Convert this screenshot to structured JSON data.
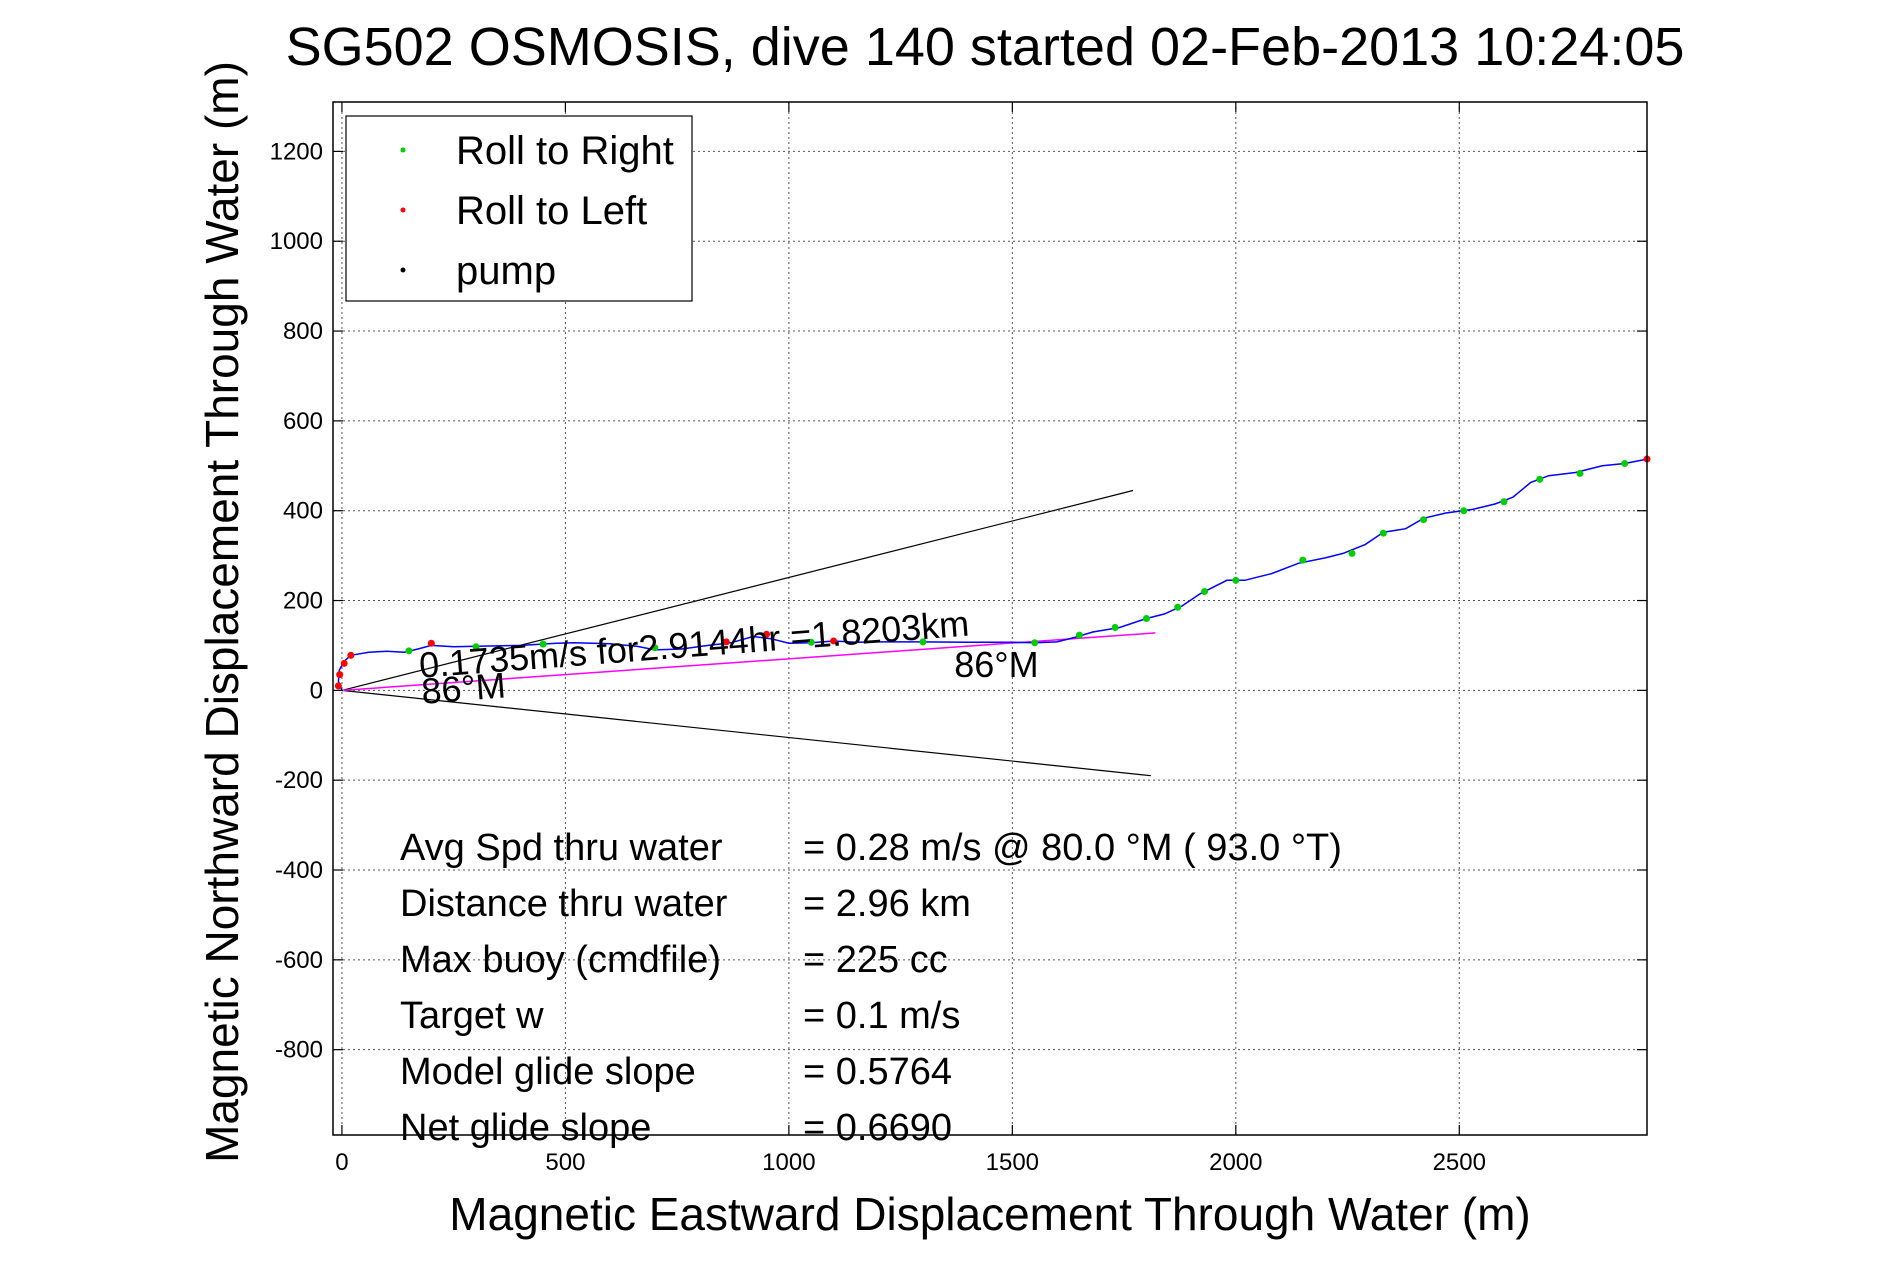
{
  "chart_data": {
    "type": "scatter",
    "title": "SG502 OSMOSIS, dive 140 started 02-Feb-2013 10:24:05",
    "xlabel": "Magnetic Eastward Displacement Through Water (m)",
    "ylabel": "Magnetic Northward Displacement Through Water (m)",
    "xlim": [
      -20,
      2920
    ],
    "ylim": [
      -990,
      1310
    ],
    "xticks": [
      0,
      500,
      1000,
      1500,
      2000,
      2500
    ],
    "yticks": [
      -800,
      -600,
      -400,
      -200,
      0,
      200,
      400,
      600,
      800,
      1000,
      1200
    ],
    "grid": true,
    "legend_position": "top-left",
    "legend": [
      {
        "label": "Roll to Right",
        "color": "#00cc00"
      },
      {
        "label": "Roll to Left",
        "color": "#ff0000"
      },
      {
        "label": "pump",
        "color": "#000000"
      }
    ],
    "track": {
      "name": "path",
      "color": "#0000ff",
      "points": [
        [
          0,
          0
        ],
        [
          -8,
          20
        ],
        [
          -6,
          45
        ],
        [
          5,
          65
        ],
        [
          20,
          78
        ],
        [
          60,
          85
        ],
        [
          100,
          87
        ],
        [
          140,
          85
        ],
        [
          170,
          92
        ],
        [
          200,
          100
        ],
        [
          250,
          97
        ],
        [
          300,
          98
        ],
        [
          400,
          100
        ],
        [
          480,
          105
        ],
        [
          520,
          106
        ],
        [
          600,
          104
        ],
        [
          660,
          98
        ],
        [
          700,
          90
        ],
        [
          760,
          92
        ],
        [
          820,
          100
        ],
        [
          870,
          106
        ],
        [
          920,
          120
        ],
        [
          960,
          115
        ],
        [
          1000,
          105
        ],
        [
          1050,
          106
        ],
        [
          1100,
          110
        ],
        [
          1150,
          107
        ],
        [
          1200,
          108
        ],
        [
          1300,
          108
        ],
        [
          1400,
          107
        ],
        [
          1500,
          107
        ],
        [
          1550,
          106
        ],
        [
          1600,
          108
        ],
        [
          1640,
          118
        ],
        [
          1680,
          130
        ],
        [
          1740,
          140
        ],
        [
          1800,
          160
        ],
        [
          1840,
          170
        ],
        [
          1880,
          188
        ],
        [
          1920,
          215
        ],
        [
          1980,
          245
        ],
        [
          2020,
          245
        ],
        [
          2080,
          260
        ],
        [
          2140,
          283
        ],
        [
          2200,
          295
        ],
        [
          2240,
          305
        ],
        [
          2290,
          325
        ],
        [
          2330,
          352
        ],
        [
          2380,
          360
        ],
        [
          2420,
          383
        ],
        [
          2470,
          395
        ],
        [
          2530,
          403
        ],
        [
          2580,
          415
        ],
        [
          2620,
          430
        ],
        [
          2660,
          463
        ],
        [
          2700,
          478
        ],
        [
          2760,
          485
        ],
        [
          2820,
          500
        ],
        [
          2870,
          505
        ],
        [
          2920,
          515
        ]
      ]
    },
    "roll_right": [
      [
        150,
        88
      ],
      [
        300,
        97
      ],
      [
        450,
        103
      ],
      [
        700,
        95
      ],
      [
        1050,
        107
      ],
      [
        1300,
        108
      ],
      [
        1550,
        106
      ],
      [
        1650,
        123
      ],
      [
        1730,
        140
      ],
      [
        1800,
        160
      ],
      [
        1870,
        185
      ],
      [
        1930,
        220
      ],
      [
        2000,
        245
      ],
      [
        2150,
        290
      ],
      [
        2260,
        305
      ],
      [
        2330,
        350
      ],
      [
        2420,
        380
      ],
      [
        2510,
        400
      ],
      [
        2600,
        420
      ],
      [
        2680,
        470
      ],
      [
        2770,
        483
      ],
      [
        2870,
        505
      ]
    ],
    "roll_left": [
      [
        -8,
        10
      ],
      [
        -5,
        35
      ],
      [
        5,
        60
      ],
      [
        20,
        78
      ],
      [
        200,
        105
      ],
      [
        860,
        108
      ],
      [
        950,
        125
      ],
      [
        1100,
        110
      ],
      [
        2920,
        515
      ]
    ],
    "dive_line": {
      "color": "#ff00ff",
      "points": [
        [
          0,
          0
        ],
        [
          1820,
          128
        ]
      ]
    },
    "bounds_lines": [
      {
        "color": "#000000",
        "points": [
          [
            0,
            0
          ],
          [
            1770,
            445
          ]
        ]
      },
      {
        "color": "#000000",
        "points": [
          [
            0,
            0
          ],
          [
            1810,
            -190
          ]
        ]
      }
    ],
    "annotations": [
      {
        "text": "0.1735m/s for2.9144hr =1.8203km",
        "x": 175,
        "y": 28,
        "rotate_deg": -4.4
      },
      {
        "text": "86°M",
        "x": 180,
        "y": -30,
        "rotate_deg": -4.4
      },
      {
        "text": "86°M",
        "x": 1370,
        "y": 30,
        "rotate_deg": 0
      }
    ],
    "stats": [
      {
        "label": "Avg Spd thru water",
        "value": "=  0.28 m/s @  80.0 °M ( 93.0 °T)"
      },
      {
        "label": "Distance thru water",
        "value": "=  2.96 km"
      },
      {
        "label": "Max buoy (cmdfile)",
        "value": "= 225 cc"
      },
      {
        "label": "Target w",
        "value": "= 0.1 m/s"
      },
      {
        "label": "Model glide slope",
        "value": "= 0.5764"
      },
      {
        "label": "Net glide slope",
        "value": "= 0.6690"
      }
    ]
  }
}
